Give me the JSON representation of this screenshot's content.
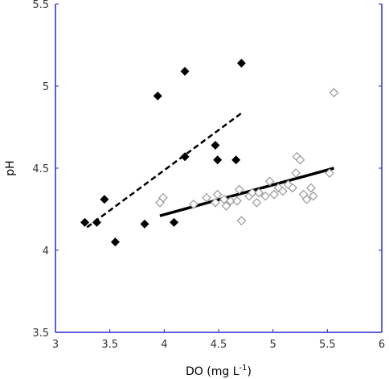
{
  "chart_data": {
    "type": "scatter",
    "title": "",
    "xlabel": "DO (mg L",
    "xlabel_superscript": "-1",
    "xlabel_suffix": ")",
    "ylabel": "pH",
    "xlim": [
      3,
      6
    ],
    "ylim": [
      3.5,
      5.5
    ],
    "x_ticks": [
      3,
      3.5,
      4,
      4.5,
      5,
      5.5,
      6
    ],
    "x_tick_labels": [
      "3",
      "3.5",
      "4",
      "4.5",
      "5",
      "5.5",
      "6"
    ],
    "y_ticks": [
      3.5,
      4,
      4.5,
      5,
      5.5
    ],
    "y_tick_labels": [
      "3.5",
      "4",
      "4.5",
      "5",
      "5.5"
    ],
    "grid": false,
    "axis_color": "#2a2ad0",
    "series": [
      {
        "marker": "filled-diamond",
        "color": "#000000",
        "points": [
          {
            "x": 3.27,
            "y": 4.17
          },
          {
            "x": 3.38,
            "y": 4.17
          },
          {
            "x": 3.45,
            "y": 4.31
          },
          {
            "x": 3.55,
            "y": 4.05
          },
          {
            "x": 3.82,
            "y": 4.16
          },
          {
            "x": 3.94,
            "y": 4.94
          },
          {
            "x": 4.09,
            "y": 4.17
          },
          {
            "x": 4.19,
            "y": 5.09
          },
          {
            "x": 4.19,
            "y": 4.57
          },
          {
            "x": 4.47,
            "y": 4.64
          },
          {
            "x": 4.49,
            "y": 4.55
          },
          {
            "x": 4.66,
            "y": 4.55
          },
          {
            "x": 4.71,
            "y": 5.14
          }
        ]
      },
      {
        "marker": "open-diamond",
        "color": "#999999",
        "points": [
          {
            "x": 3.96,
            "y": 4.29
          },
          {
            "x": 3.99,
            "y": 4.32
          },
          {
            "x": 4.27,
            "y": 4.28
          },
          {
            "x": 4.39,
            "y": 4.32
          },
          {
            "x": 4.47,
            "y": 4.29
          },
          {
            "x": 4.49,
            "y": 4.34
          },
          {
            "x": 4.55,
            "y": 4.31
          },
          {
            "x": 4.57,
            "y": 4.27
          },
          {
            "x": 4.61,
            "y": 4.3
          },
          {
            "x": 4.67,
            "y": 4.3
          },
          {
            "x": 4.69,
            "y": 4.37
          },
          {
            "x": 4.71,
            "y": 4.18
          },
          {
            "x": 4.78,
            "y": 4.33
          },
          {
            "x": 4.81,
            "y": 4.35
          },
          {
            "x": 4.85,
            "y": 4.29
          },
          {
            "x": 4.87,
            "y": 4.35
          },
          {
            "x": 4.93,
            "y": 4.33
          },
          {
            "x": 4.97,
            "y": 4.42
          },
          {
            "x": 5.01,
            "y": 4.34
          },
          {
            "x": 5.05,
            "y": 4.38
          },
          {
            "x": 5.09,
            "y": 4.36
          },
          {
            "x": 5.14,
            "y": 4.4
          },
          {
            "x": 5.18,
            "y": 4.38
          },
          {
            "x": 5.21,
            "y": 4.47
          },
          {
            "x": 5.22,
            "y": 4.57
          },
          {
            "x": 5.25,
            "y": 4.55
          },
          {
            "x": 5.28,
            "y": 4.34
          },
          {
            "x": 5.31,
            "y": 4.31
          },
          {
            "x": 5.35,
            "y": 4.38
          },
          {
            "x": 5.37,
            "y": 4.33
          },
          {
            "x": 5.52,
            "y": 4.47
          },
          {
            "x": 5.56,
            "y": 4.96
          }
        ]
      }
    ],
    "trend_lines": [
      {
        "style": "dashed",
        "color": "#000000",
        "x": [
          3.29,
          4.72
        ],
        "y": [
          4.14,
          4.84
        ]
      },
      {
        "style": "solid",
        "color": "#000000",
        "x": [
          3.96,
          5.56
        ],
        "y": [
          4.21,
          4.5
        ]
      }
    ]
  }
}
